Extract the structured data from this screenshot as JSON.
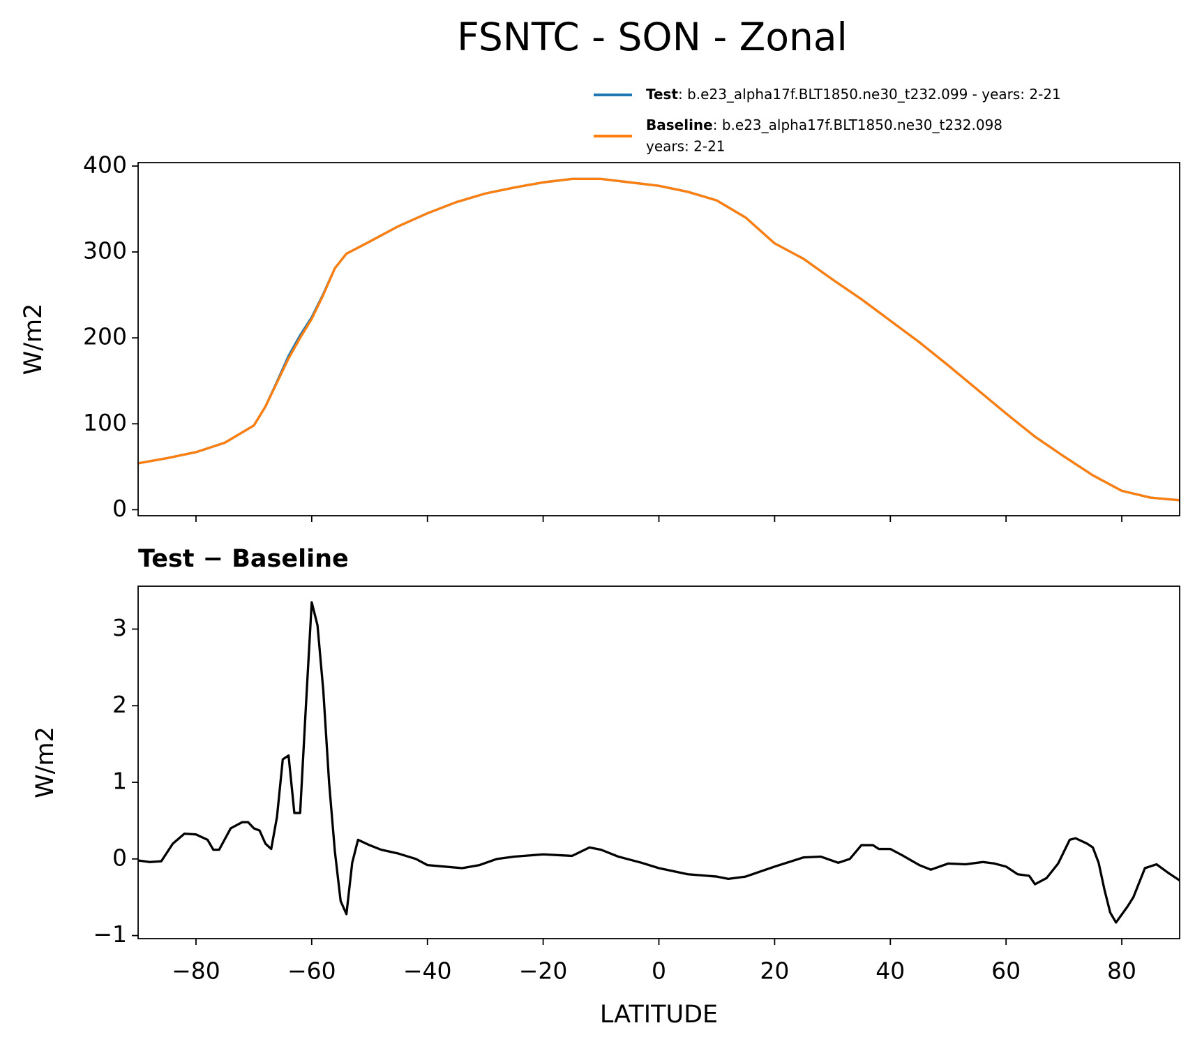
{
  "chart_data": [
    {
      "type": "line",
      "title": "FSNTC - SON - Zonal",
      "ylabel": "W/m2",
      "x": [
        -90,
        -85,
        -80,
        -75,
        -70,
        -68,
        -66,
        -64,
        -62,
        -60,
        -58,
        -56,
        -54,
        -50,
        -45,
        -40,
        -35,
        -30,
        -25,
        -20,
        -15,
        -10,
        -5,
        0,
        5,
        10,
        15,
        20,
        25,
        30,
        35,
        40,
        45,
        50,
        55,
        60,
        65,
        70,
        75,
        80,
        85,
        90
      ],
      "series": [
        {
          "name": "Test",
          "legend_lines": [
            ": b.e23_alpha17f.BLT1850.ne30_t232.099 - years: 2-21"
          ],
          "color": "#1f77b4",
          "values": [
            54,
            60,
            67,
            78,
            98,
            120,
            149,
            179,
            203,
            224,
            251,
            281,
            298,
            312,
            330,
            345,
            358,
            368,
            375,
            381,
            385,
            385,
            381,
            377,
            370,
            360,
            340,
            310,
            292,
            268,
            245,
            220,
            195,
            168,
            140,
            112,
            85,
            62,
            40,
            22,
            14,
            11
          ]
        },
        {
          "name": "Baseline",
          "legend_lines": [
            ": b.e23_alpha17f.BLT1850.ne30_t232.098",
            "years: 2-21"
          ],
          "color": "#ff7f0e",
          "values": [
            54,
            60,
            67,
            78,
            98,
            120,
            148,
            176,
            200,
            222,
            250,
            281,
            298,
            312,
            330,
            345,
            358,
            368,
            375,
            381,
            385,
            385,
            381,
            377,
            370,
            360,
            340,
            310,
            292,
            268,
            245,
            220,
            195,
            168,
            140,
            112,
            85,
            62,
            40,
            22,
            14,
            11
          ]
        }
      ],
      "xlim": [
        -90,
        90
      ],
      "xticks": [
        {
          "value": -80,
          "label": "−80"
        },
        {
          "value": -60,
          "label": "−60"
        },
        {
          "value": -40,
          "label": "−40"
        },
        {
          "value": -20,
          "label": "−20"
        },
        0,
        20,
        40,
        60,
        80
      ],
      "ylim": [
        -7,
        404
      ],
      "yticks": [
        0,
        100,
        200,
        300,
        400
      ],
      "grid": false
    },
    {
      "type": "line",
      "title": "Test − Baseline",
      "ylabel": "W/m2",
      "xlabel": "LATITUDE",
      "x": [
        -90,
        -88,
        -86,
        -84,
        -82,
        -80,
        -78,
        -77,
        -76,
        -74,
        -72,
        -71,
        -70,
        -69,
        -68,
        -67,
        -66,
        -65,
        -64,
        -63,
        -62,
        -61,
        -60,
        -59,
        -58,
        -57,
        -56,
        -55,
        -54,
        -53,
        -52,
        -50,
        -48,
        -45,
        -42,
        -40,
        -37,
        -34,
        -31,
        -28,
        -25,
        -20,
        -15,
        -12,
        -10,
        -7,
        -3,
        0,
        5,
        10,
        12,
        15,
        20,
        25,
        28,
        31,
        33,
        35,
        37,
        38,
        40,
        42,
        45,
        47,
        50,
        53,
        56,
        58,
        60,
        62,
        64,
        65,
        67,
        69,
        71,
        72,
        74,
        75,
        76,
        77,
        78,
        79,
        81,
        82,
        84,
        86,
        88,
        90
      ],
      "series": [
        {
          "name": "Test − Baseline",
          "color": "#000000",
          "values": [
            -0.02,
            -0.04,
            -0.03,
            0.2,
            0.33,
            0.32,
            0.25,
            0.12,
            0.12,
            0.4,
            0.48,
            0.48,
            0.4,
            0.37,
            0.2,
            0.13,
            0.55,
            1.3,
            1.35,
            0.6,
            0.6,
            2.0,
            3.35,
            3.05,
            2.2,
            1.0,
            0.1,
            -0.55,
            -0.72,
            -0.05,
            0.25,
            0.18,
            0.12,
            0.07,
            0.0,
            -0.08,
            -0.1,
            -0.12,
            -0.08,
            0.0,
            0.03,
            0.06,
            0.04,
            0.15,
            0.12,
            0.03,
            -0.05,
            -0.12,
            -0.2,
            -0.23,
            -0.26,
            -0.23,
            -0.1,
            0.02,
            0.03,
            -0.05,
            0.0,
            0.18,
            0.18,
            0.13,
            0.13,
            0.05,
            -0.08,
            -0.14,
            -0.06,
            -0.07,
            -0.04,
            -0.06,
            -0.1,
            -0.2,
            -0.22,
            -0.33,
            -0.25,
            -0.06,
            0.25,
            0.27,
            0.2,
            0.15,
            -0.05,
            -0.4,
            -0.7,
            -0.83,
            -0.62,
            -0.5,
            -0.12,
            -0.07,
            -0.18,
            -0.28
          ]
        }
      ],
      "xlim": [
        -90,
        90
      ],
      "xticks": [
        {
          "value": -80,
          "label": "−80"
        },
        {
          "value": -60,
          "label": "−60"
        },
        {
          "value": -40,
          "label": "−40"
        },
        {
          "value": -20,
          "label": "−20"
        },
        0,
        20,
        40,
        60,
        80
      ],
      "ylim": [
        -1.04,
        3.56
      ],
      "yticks": [
        {
          "value": -1,
          "label": "−1"
        },
        0,
        1,
        2,
        3
      ],
      "grid": false
    }
  ]
}
